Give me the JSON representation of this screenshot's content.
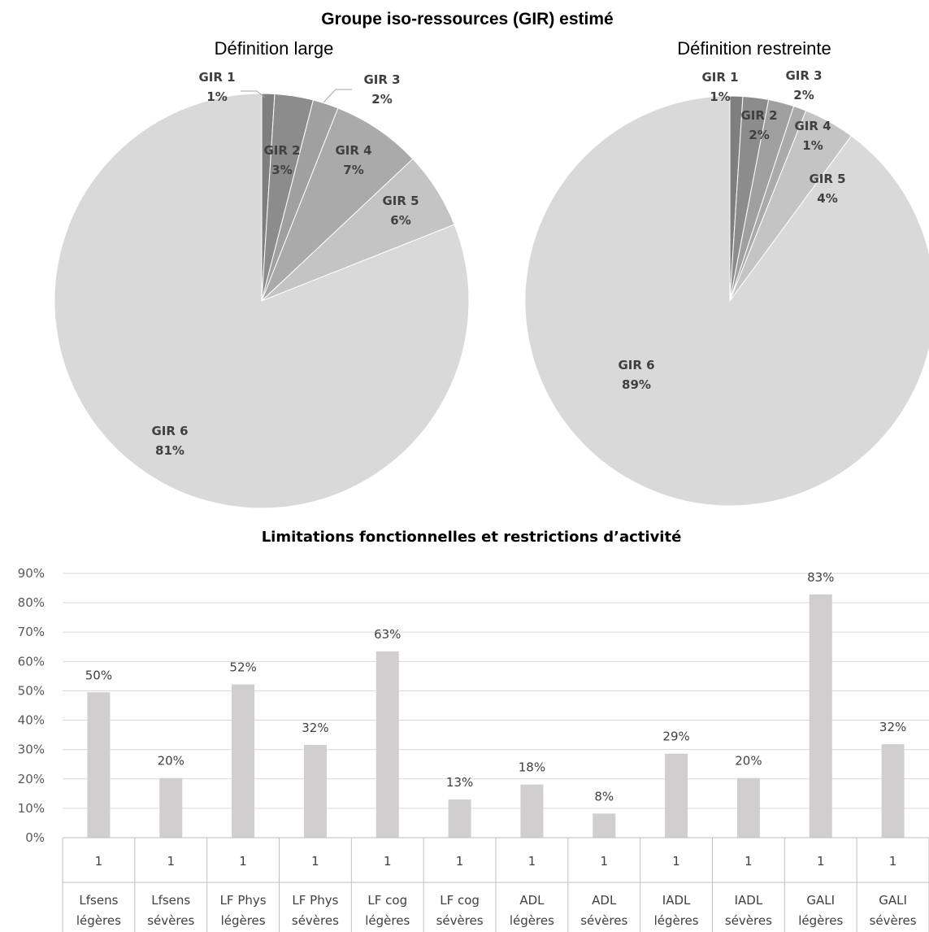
{
  "figure_title": "Groupe iso-ressources (GIR) estimé",
  "chart_data": [
    {
      "type": "pie",
      "title": "Définition large",
      "labels": [
        "GIR 1",
        "GIR 2",
        "GIR 3",
        "GIR 4",
        "GIR 5",
        "GIR 6"
      ],
      "values": [
        1,
        3,
        2,
        7,
        6,
        81
      ],
      "value_labels": [
        "1%",
        "3%",
        "2%",
        "7%",
        "6%",
        "81%"
      ],
      "colors": [
        "#7f7f7f",
        "#8c8c8c",
        "#a0a0a0",
        "#aaaaaa",
        "#c4c4c4",
        "#d9d9d9"
      ]
    },
    {
      "type": "pie",
      "title": "Définition restreinte",
      "labels": [
        "GIR 1",
        "GIR 2",
        "GIR 3",
        "GIR 4",
        "GIR 5",
        "GIR 6"
      ],
      "values": [
        1,
        2,
        2,
        1,
        4,
        89
      ],
      "value_labels": [
        "1%",
        "2%",
        "2%",
        "1%",
        "4%",
        "89%"
      ],
      "colors": [
        "#7f7f7f",
        "#8c8c8c",
        "#a0a0a0",
        "#aaaaaa",
        "#c4c4c4",
        "#d9d9d9"
      ]
    },
    {
      "type": "bar",
      "title": "Limitations fonctionnelles et restrictions d’activité",
      "series_label": "1",
      "categories": [
        [
          "Lfsens",
          "légères"
        ],
        [
          "Lfsens",
          "sévères"
        ],
        [
          "LF Phys",
          "légères"
        ],
        [
          "LF Phys",
          "sévères"
        ],
        [
          "LF cog",
          "légères"
        ],
        [
          "LF cog",
          "sévères"
        ],
        [
          "ADL",
          "légères"
        ],
        [
          "ADL",
          "sévères"
        ],
        [
          "IADL",
          "légères"
        ],
        [
          "IADL",
          "sévères"
        ],
        [
          "GALI",
          "légères"
        ],
        [
          "GALI",
          "sévères"
        ]
      ],
      "values": [
        49.5,
        20.3,
        52.2,
        31.6,
        63.4,
        13,
        18.1,
        8.2,
        28.6,
        20.3,
        82.8,
        31.8
      ],
      "value_labels": [
        "50%",
        "20%",
        "52%",
        "32%",
        "63%",
        "13%",
        "18%",
        "8%",
        "29%",
        "20%",
        "83%",
        "32%"
      ],
      "yticks": [
        "0%",
        "10%",
        "20%",
        "30%",
        "40%",
        "50%",
        "60%",
        "70%",
        "80%",
        "90%"
      ],
      "ylim": [
        0,
        90
      ],
      "grid": true,
      "bar_color": "#d0cece"
    }
  ]
}
